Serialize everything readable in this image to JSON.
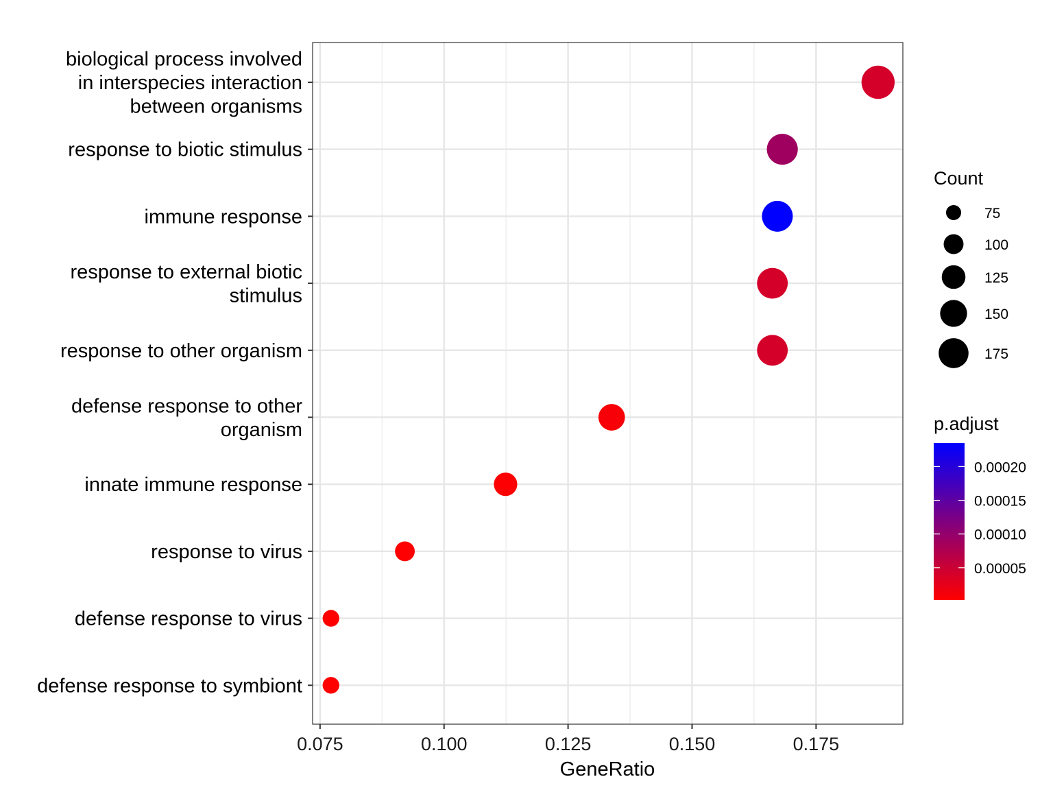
{
  "chart_data": {
    "type": "scatter",
    "xlabel": "GeneRatio",
    "ylabel": "",
    "xlim": [
      0.0735,
      0.1925
    ],
    "x_ticks": [
      "0.075",
      "0.100",
      "0.125",
      "0.150",
      "0.175"
    ],
    "grid": true,
    "legend_position": "right",
    "categories": [
      "biological process involved in interspecies interaction between organisms",
      "response to biotic stimulus",
      "immune response",
      "response to external biotic stimulus",
      "response to other organism",
      "defense response to other organism",
      "innate immune response",
      "response to virus",
      "defense response to virus",
      "defense response to symbiont"
    ],
    "category_lines": [
      [
        "biological process involved",
        "in interspecies interaction",
        "between organisms"
      ],
      [
        "response to biotic stimulus"
      ],
      [
        "immune response"
      ],
      [
        "response to external biotic",
        "stimulus"
      ],
      [
        "response to other organism"
      ],
      [
        "defense response to other",
        "organism"
      ],
      [
        "innate immune response"
      ],
      [
        "response to virus"
      ],
      [
        "defense response to virus"
      ],
      [
        "defense response to symbiont"
      ]
    ],
    "points": [
      {
        "term": "biological process involved in interspecies interaction between organisms",
        "gene_ratio": 0.1875,
        "count": 196,
        "p_adjust": 4e-05
      },
      {
        "term": "response to biotic stimulus",
        "gene_ratio": 0.1682,
        "count": 176,
        "p_adjust": 9e-05
      },
      {
        "term": "immune response",
        "gene_ratio": 0.1672,
        "count": 175,
        "p_adjust": 0.000235
      },
      {
        "term": "response to external biotic stimulus",
        "gene_ratio": 0.1662,
        "count": 174,
        "p_adjust": 4e-05
      },
      {
        "term": "response to other organism",
        "gene_ratio": 0.1662,
        "count": 174,
        "p_adjust": 4e-05
      },
      {
        "term": "defense response to other organism",
        "gene_ratio": 0.1338,
        "count": 140,
        "p_adjust": 8e-06
      },
      {
        "term": "innate immune response",
        "gene_ratio": 0.1124,
        "count": 118,
        "p_adjust": 5e-06
      },
      {
        "term": "response to virus",
        "gene_ratio": 0.0921,
        "count": 96,
        "p_adjust": 3e-06
      },
      {
        "term": "defense response to virus",
        "gene_ratio": 0.0772,
        "count": 80,
        "p_adjust": 2e-06
      },
      {
        "term": "defense response to symbiont",
        "gene_ratio": 0.0772,
        "count": 80,
        "p_adjust": 2e-06
      }
    ],
    "size_legend": {
      "title": "Count",
      "values": [
        75,
        100,
        125,
        150,
        175
      ],
      "labels": [
        "75",
        "100",
        "125",
        "150",
        "175"
      ]
    },
    "color_legend": {
      "title": "p.adjust",
      "low_color": "#ff0000",
      "high_color": "#0000ff",
      "min": 2e-06,
      "max": 0.000235,
      "tick_values": [
        0.0002,
        0.00015,
        0.0001,
        5e-05
      ],
      "tick_labels": [
        "0.00020",
        "0.00015",
        "0.00010",
        "0.00005"
      ]
    }
  }
}
